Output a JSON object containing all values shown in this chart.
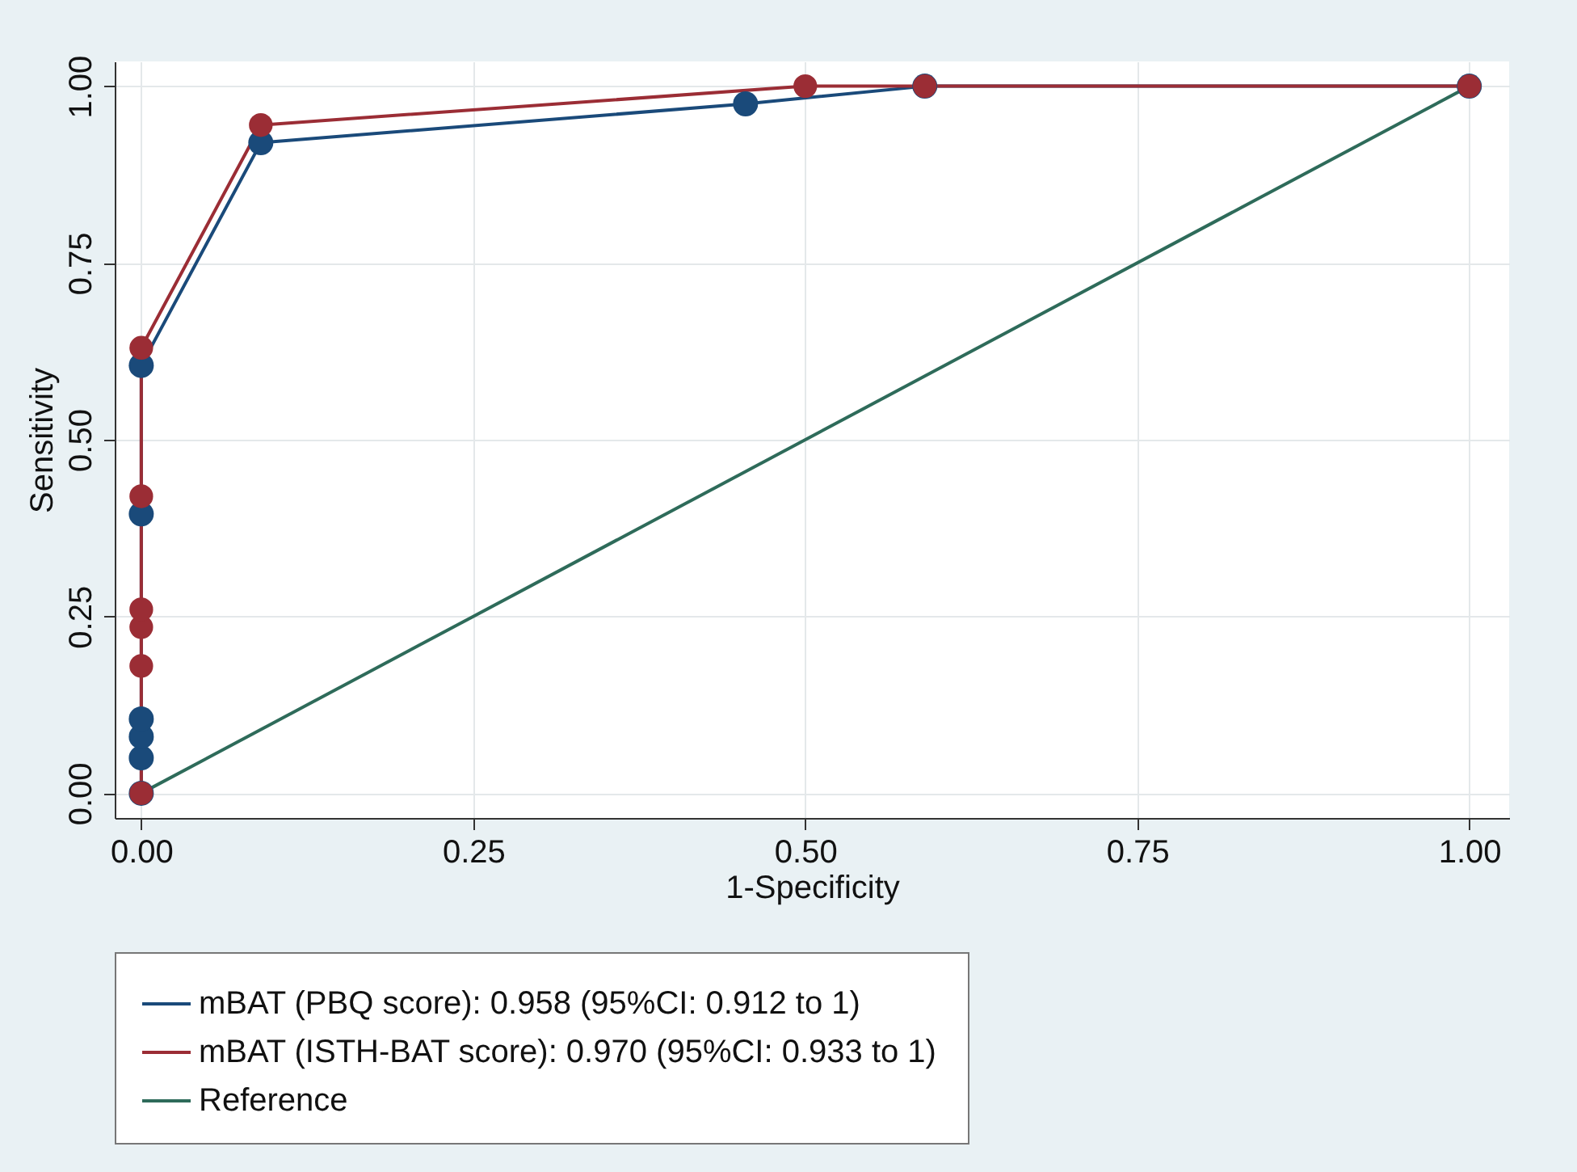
{
  "chart_data": {
    "type": "line",
    "xlabel": "1-Specificity",
    "ylabel": "Sensitivity",
    "xlim": [
      -0.02,
      1.03
    ],
    "ylim": [
      -0.035,
      1.035
    ],
    "xticks": [
      {
        "value": 0,
        "label": "0.00"
      },
      {
        "value": 0.25,
        "label": "0.25"
      },
      {
        "value": 0.5,
        "label": "0.50"
      },
      {
        "value": 0.75,
        "label": "0.75"
      },
      {
        "value": 1,
        "label": "1.00"
      }
    ],
    "yticks": [
      {
        "value": 0,
        "label": "0.00"
      },
      {
        "value": 0.25,
        "label": "0.25"
      },
      {
        "value": 0.5,
        "label": "0.50"
      },
      {
        "value": 0.75,
        "label": "0.75"
      },
      {
        "value": 1,
        "label": "1.00"
      }
    ],
    "grid": true,
    "legend": "bottom",
    "line_style": "solid",
    "series": [
      {
        "name": "mBAT (PBQ score):          0.958 (95%CI: 0.912 to 1)",
        "color": "#1a4a7a",
        "marker": "circle",
        "x": [
          0,
          0,
          0,
          0,
          0,
          0,
          0.09,
          0.455,
          0.59,
          1
        ],
        "values": [
          0,
          0.05,
          0.08,
          0.105,
          0.395,
          0.605,
          0.92,
          0.975,
          1,
          1
        ]
      },
      {
        "name": "mBAT (ISTH-BAT score): 0.970 (95%CI: 0.933 to 1)",
        "color": "#9b2d35",
        "marker": "circle",
        "x": [
          0,
          0,
          0,
          0,
          0,
          0,
          0.09,
          0.5,
          0.59,
          1
        ],
        "values": [
          0,
          0.18,
          0.235,
          0.26,
          0.42,
          0.63,
          0.945,
          1,
          1,
          1
        ]
      },
      {
        "name": "Reference",
        "color": "#2e6b5a",
        "marker": "none",
        "x": [
          0,
          1
        ],
        "values": [
          0,
          1
        ]
      }
    ]
  }
}
